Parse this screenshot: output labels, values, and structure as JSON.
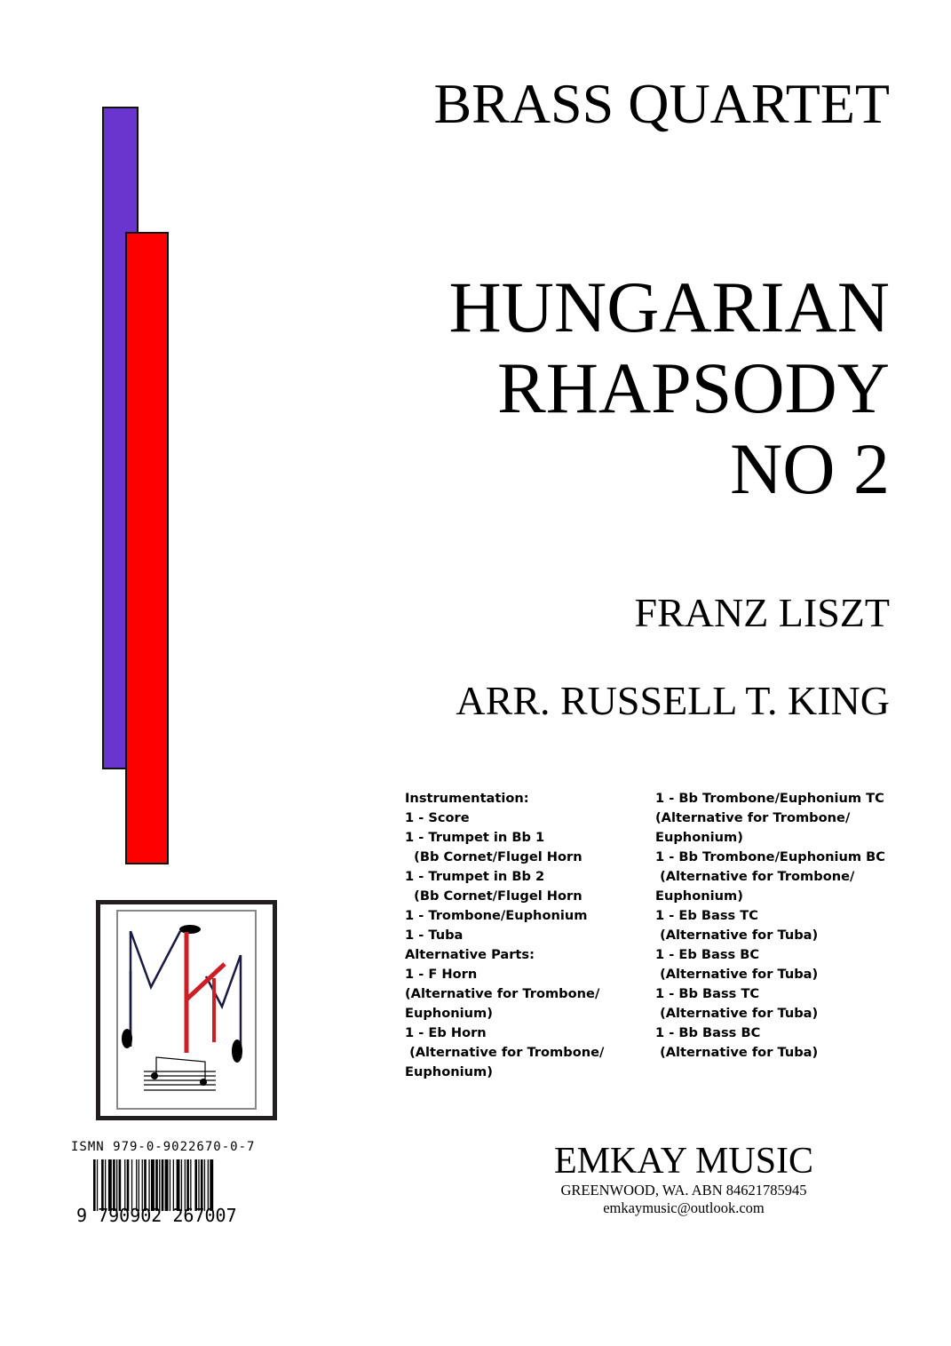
{
  "cover": {
    "series": "BRASS QUARTET",
    "title_lines": [
      "HUNGARIAN",
      "RHAPSODY",
      "NO 2"
    ],
    "composer": "FRANZ LISZT",
    "arranger": "ARR. RUSSELL T. KING",
    "colors": {
      "bar_left": "#6a35cf",
      "bar_right": "#ff0000",
      "logo_letters_dark": "#1a1a40",
      "logo_letters_red": "#cc1f25"
    }
  },
  "instrumentation": {
    "left": [
      "Instrumentation:",
      "1 - Score",
      "1 - Trumpet in Bb 1",
      "  (Bb Cornet/Flugel Horn",
      "1 - Trumpet in Bb 2",
      "  (Bb Cornet/Flugel Horn",
      "1 - Trombone/Euphonium",
      "1 - Tuba",
      "Alternative Parts:",
      "1 - F Horn",
      "(Alternative for Trombone/",
      "Euphonium)",
      "1 - Eb Horn",
      " (Alternative for Trombone/",
      "Euphonium)"
    ],
    "right": [
      "1 - Bb Trombone/Euphonium TC",
      "(Alternative for Trombone/",
      "Euphonium)",
      "1 - Bb Trombone/Euphonium BC",
      " (Alternative for Trombone/",
      "Euphonium)",
      "1 - Eb Bass TC",
      " (Alternative for Tuba)",
      "1 - Eb Bass BC",
      " (Alternative for Tuba)",
      "1 - Bb Bass TC",
      " (Alternative for Tuba)",
      "1 - Bb Bass BC",
      " (Alternative for Tuba)"
    ]
  },
  "logo": {
    "letters": "MKM"
  },
  "barcode": {
    "ismn": "ISMN 979-0-9022670-0-7",
    "digits": "9 790902 267007"
  },
  "publisher": {
    "name": "EMKAY MUSIC",
    "address": "GREENWOOD, WA. ABN 84621785945",
    "email": "emkaymusic@outlook.com"
  }
}
